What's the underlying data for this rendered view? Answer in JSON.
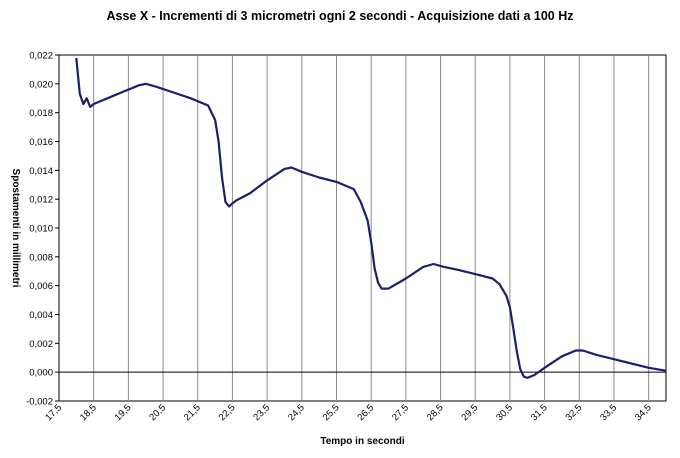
{
  "chart_data": {
    "type": "line",
    "title": "Asse X - Incrementi di 3 micrometri ogni 2 secondi - Acquisizione dati a 100 Hz",
    "xlabel": "Tempo in secondi",
    "ylabel": "Spostamenti in millimetri",
    "xlim": [
      17.5,
      35
    ],
    "ylim": [
      -0.002,
      0.022
    ],
    "x_ticks": [
      "17,5",
      "18,5",
      "19,5",
      "20,5",
      "21,5",
      "22,5",
      "23,5",
      "24,5",
      "25,5",
      "26,5",
      "27,5",
      "28,5",
      "29,5",
      "30,5",
      "31,5",
      "32,5",
      "33,5",
      "34,5"
    ],
    "y_ticks": [
      "-0,002",
      "0,000",
      "0,002",
      "0,004",
      "0,006",
      "0,008",
      "0,010",
      "0,012",
      "0,014",
      "0,016",
      "0,018",
      "0,020",
      "0,022"
    ],
    "grid": {
      "vertical": true,
      "horizontal": false
    },
    "line_color": "#1a1f6e",
    "series": [
      {
        "x": [
          18.0,
          18.05,
          18.1,
          18.2,
          18.3,
          18.4,
          18.5,
          18.7,
          19.0,
          19.4,
          19.8,
          20.0,
          20.3,
          20.8,
          21.3,
          21.8,
          22.0,
          22.1,
          22.2,
          22.3,
          22.4,
          22.5,
          22.6,
          23.0,
          23.5,
          24.0,
          24.2,
          24.5,
          25.0,
          25.5,
          26.0,
          26.2,
          26.4,
          26.5,
          26.6,
          26.7,
          26.8,
          27.0,
          27.5,
          28.0,
          28.3,
          28.6,
          29.0,
          29.5,
          30.0,
          30.2,
          30.4,
          30.5,
          30.6,
          30.7,
          30.8,
          30.9,
          31.0,
          31.2,
          31.5,
          32.0,
          32.4,
          32.6,
          33.0,
          33.5,
          34.0,
          34.5,
          35.0
        ],
        "y": [
          0.0218,
          0.0205,
          0.0193,
          0.0186,
          0.019,
          0.0184,
          0.0186,
          0.0188,
          0.0191,
          0.0195,
          0.0199,
          0.02,
          0.0198,
          0.0194,
          0.019,
          0.0185,
          0.0175,
          0.016,
          0.0135,
          0.0118,
          0.0115,
          0.0117,
          0.0119,
          0.0124,
          0.0133,
          0.0141,
          0.0142,
          0.0139,
          0.0135,
          0.0132,
          0.0127,
          0.0118,
          0.0105,
          0.009,
          0.0072,
          0.0062,
          0.0058,
          0.0058,
          0.0065,
          0.0073,
          0.0075,
          0.0073,
          0.0071,
          0.0068,
          0.0065,
          0.0061,
          0.0053,
          0.0045,
          0.003,
          0.0014,
          0.0002,
          -0.0003,
          -0.0004,
          -0.0002,
          0.0003,
          0.0011,
          0.0015,
          0.0015,
          0.0012,
          0.0009,
          0.0006,
          0.0003,
          0.0001
        ]
      }
    ]
  }
}
